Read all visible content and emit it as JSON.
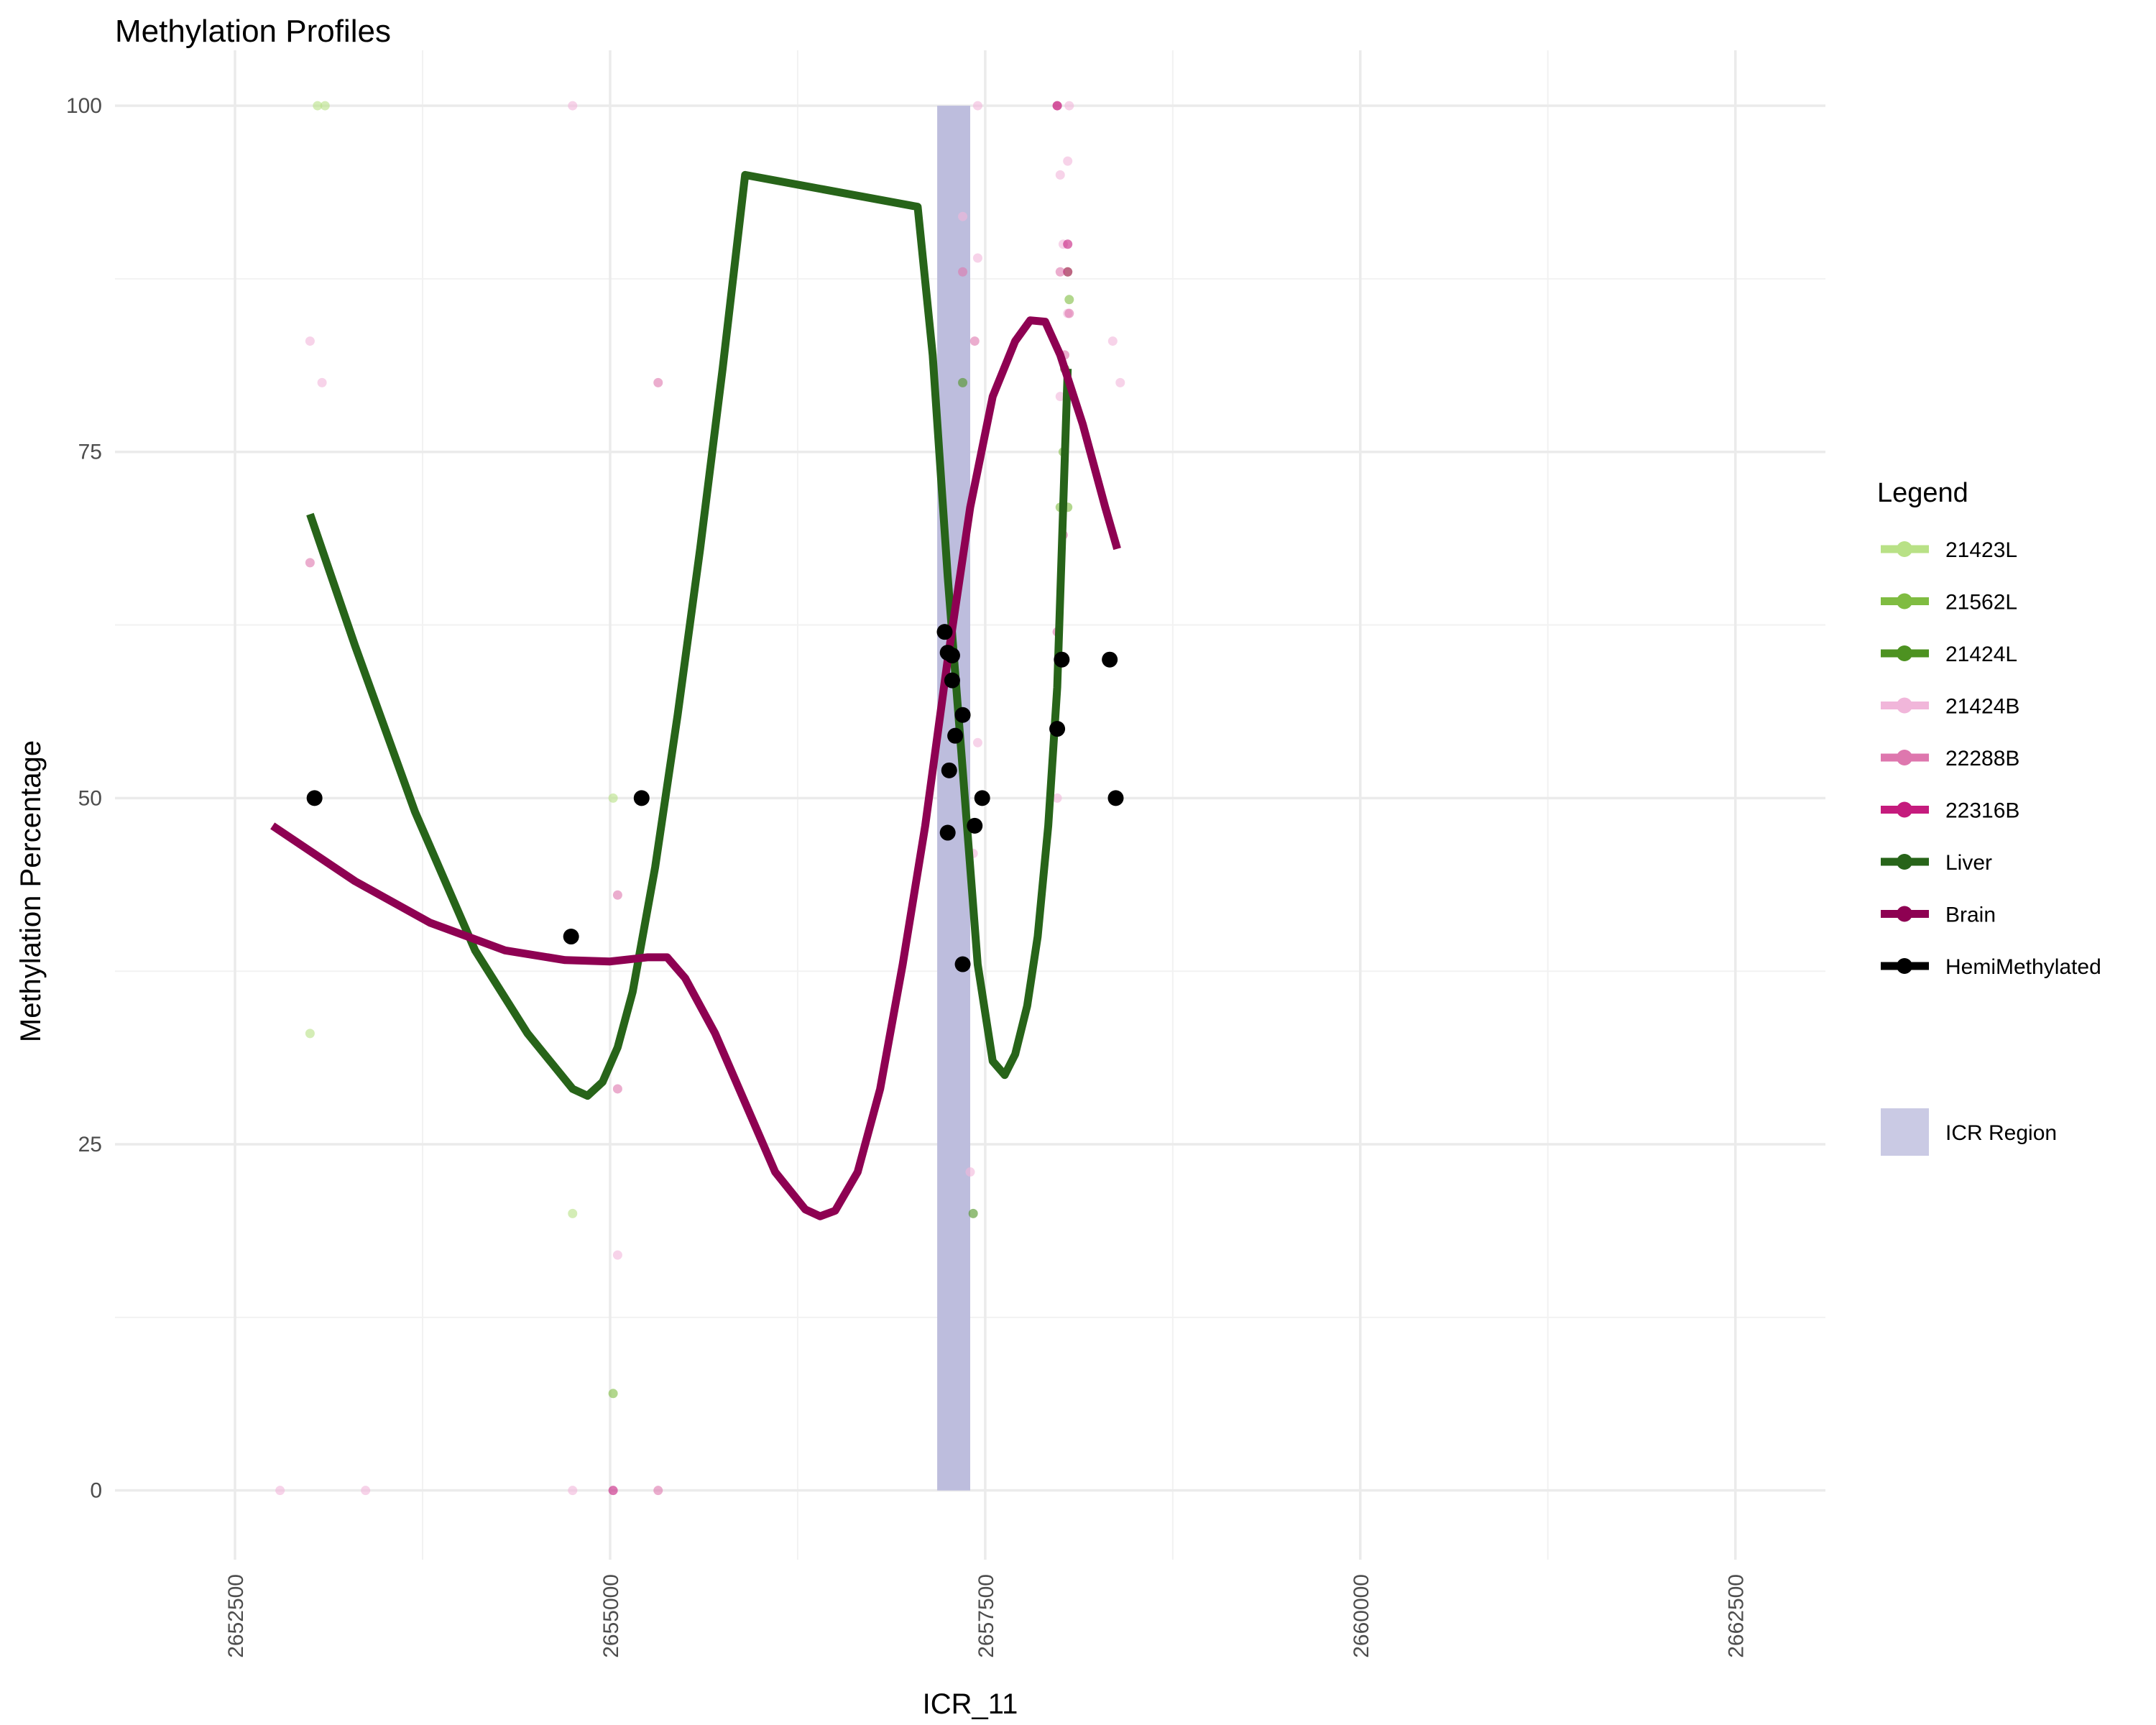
{
  "chart_data": {
    "type": "line",
    "title": "Methylation Profiles",
    "xlabel": "ICR_11",
    "ylabel": "Methylation Percentage",
    "xlim": [
      2651700,
      2663100
    ],
    "ylim": [
      -5,
      104
    ],
    "x_ticks": [
      2652500,
      2655000,
      2657500,
      2660000,
      2662500
    ],
    "x_tick_labels": [
      "2652500",
      "2655000",
      "2657500",
      "2660000",
      "2662500"
    ],
    "y_ticks": [
      0,
      25,
      50,
      75,
      100
    ],
    "y_tick_labels": [
      "0",
      "25",
      "50",
      "75",
      "100"
    ],
    "grid": true,
    "legend_position": "right",
    "legend_title": "Legend",
    "region": {
      "label": "ICR Region",
      "x_start": 2657180,
      "x_end": 2657400,
      "y_start": 0,
      "y_end": 100,
      "color": "#bdbddd"
    },
    "series": [
      {
        "name": "21423L",
        "color": "#b8e186",
        "type": "scatter",
        "points": [
          [
            2653050,
            100
          ],
          [
            2653100,
            100
          ],
          [
            2653000,
            33
          ],
          [
            2654750,
            20
          ],
          [
            2655020,
            50
          ]
        ]
      },
      {
        "name": "21562L",
        "color": "#7fbc41",
        "type": "scatter",
        "points": [
          [
            2658050,
            88
          ],
          [
            2658060,
            86
          ],
          [
            2658020,
            75
          ],
          [
            2658000,
            71
          ],
          [
            2658050,
            71
          ],
          [
            2655020,
            7
          ]
        ]
      },
      {
        "name": "21424L",
        "color": "#4d9221",
        "type": "scatter",
        "points": [
          [
            2657350,
            80
          ],
          [
            2657420,
            20
          ],
          [
            2658030,
            81
          ]
        ]
      },
      {
        "name": "21424B",
        "color": "#f1b6da",
        "type": "scatter",
        "points": [
          [
            2652800,
            0
          ],
          [
            2653370,
            0
          ],
          [
            2654750,
            0
          ],
          [
            2654750,
            100
          ],
          [
            2653000,
            83
          ],
          [
            2653080,
            80
          ],
          [
            2655050,
            17
          ],
          [
            2657450,
            100
          ],
          [
            2657350,
            92
          ],
          [
            2657450,
            89
          ],
          [
            2657450,
            54
          ],
          [
            2657420,
            46
          ],
          [
            2657400,
            23
          ],
          [
            2657980,
            50
          ],
          [
            2658050,
            96
          ],
          [
            2658000,
            95
          ],
          [
            2658020,
            90
          ],
          [
            2658050,
            85
          ],
          [
            2658350,
            83
          ],
          [
            2658400,
            80
          ],
          [
            2658000,
            79
          ],
          [
            2658060,
            100
          ]
        ]
      },
      {
        "name": "22288B",
        "color": "#de77ae",
        "type": "scatter",
        "points": [
          [
            2653000,
            67
          ],
          [
            2655050,
            43
          ],
          [
            2655050,
            29
          ],
          [
            2655320,
            80
          ],
          [
            2655320,
            0
          ],
          [
            2657350,
            88
          ],
          [
            2657430,
            83
          ],
          [
            2657980,
            100
          ],
          [
            2658000,
            88
          ],
          [
            2658020,
            69
          ],
          [
            2657980,
            62
          ],
          [
            2658060,
            85
          ],
          [
            2658030,
            82
          ]
        ]
      },
      {
        "name": "22316B",
        "color": "#c51b7d",
        "type": "scatter",
        "points": [
          [
            2655020,
            0
          ],
          [
            2657980,
            100
          ],
          [
            2658050,
            90
          ],
          [
            2658050,
            88
          ]
        ]
      },
      {
        "name": "Liver",
        "color": "#276419",
        "type": "line",
        "points": [
          [
            2653000,
            70.5
          ],
          [
            2653300,
            61
          ],
          [
            2653700,
            49
          ],
          [
            2654100,
            39
          ],
          [
            2654450,
            33
          ],
          [
            2654750,
            29
          ],
          [
            2654850,
            28.5
          ],
          [
            2654950,
            29.5
          ],
          [
            2655050,
            32
          ],
          [
            2655150,
            36
          ],
          [
            2655300,
            45
          ],
          [
            2655450,
            56
          ],
          [
            2655600,
            68
          ],
          [
            2655750,
            81
          ],
          [
            2655900,
            95
          ],
          [
            2657050,
            92.7
          ],
          [
            2657150,
            82
          ],
          [
            2657250,
            66
          ],
          [
            2657350,
            52
          ],
          [
            2657450,
            38
          ],
          [
            2657550,
            31
          ],
          [
            2657630,
            30
          ],
          [
            2657700,
            31.5
          ],
          [
            2657780,
            35
          ],
          [
            2657850,
            40
          ],
          [
            2657920,
            48
          ],
          [
            2657980,
            58
          ],
          [
            2658050,
            81
          ]
        ]
      },
      {
        "name": "Brain",
        "color": "#8e0152",
        "type": "line",
        "points": [
          [
            2652750,
            48
          ],
          [
            2653300,
            44
          ],
          [
            2653800,
            41
          ],
          [
            2654300,
            39
          ],
          [
            2654700,
            38.3
          ],
          [
            2655000,
            38.2
          ],
          [
            2655250,
            38.5
          ],
          [
            2655380,
            38.5
          ],
          [
            2655500,
            37
          ],
          [
            2655700,
            33
          ],
          [
            2655900,
            28
          ],
          [
            2656100,
            23
          ],
          [
            2656300,
            20.3
          ],
          [
            2656400,
            19.8
          ],
          [
            2656500,
            20.2
          ],
          [
            2656650,
            23
          ],
          [
            2656800,
            29
          ],
          [
            2656950,
            38
          ],
          [
            2657100,
            48
          ],
          [
            2657250,
            60
          ],
          [
            2657400,
            71
          ],
          [
            2657550,
            79
          ],
          [
            2657700,
            83
          ],
          [
            2657800,
            84.5
          ],
          [
            2657900,
            84.4
          ],
          [
            2658000,
            82
          ],
          [
            2658150,
            77
          ],
          [
            2658300,
            71
          ],
          [
            2658380,
            68
          ]
        ]
      },
      {
        "name": "HemiMethylated",
        "color": "#000000",
        "type": "scatter",
        "points": [
          [
            2653030,
            50
          ],
          [
            2654740,
            40
          ],
          [
            2655210,
            50
          ],
          [
            2657230,
            62
          ],
          [
            2657250,
            60.5
          ],
          [
            2657280,
            60.3
          ],
          [
            2657280,
            58.5
          ],
          [
            2657300,
            54.5
          ],
          [
            2657260,
            52
          ],
          [
            2657350,
            56
          ],
          [
            2657250,
            47.5
          ],
          [
            2657480,
            50
          ],
          [
            2657430,
            48
          ],
          [
            2657350,
            38
          ],
          [
            2657980,
            55
          ],
          [
            2658010,
            60
          ],
          [
            2658330,
            60
          ],
          [
            2658370,
            50
          ]
        ]
      }
    ]
  }
}
